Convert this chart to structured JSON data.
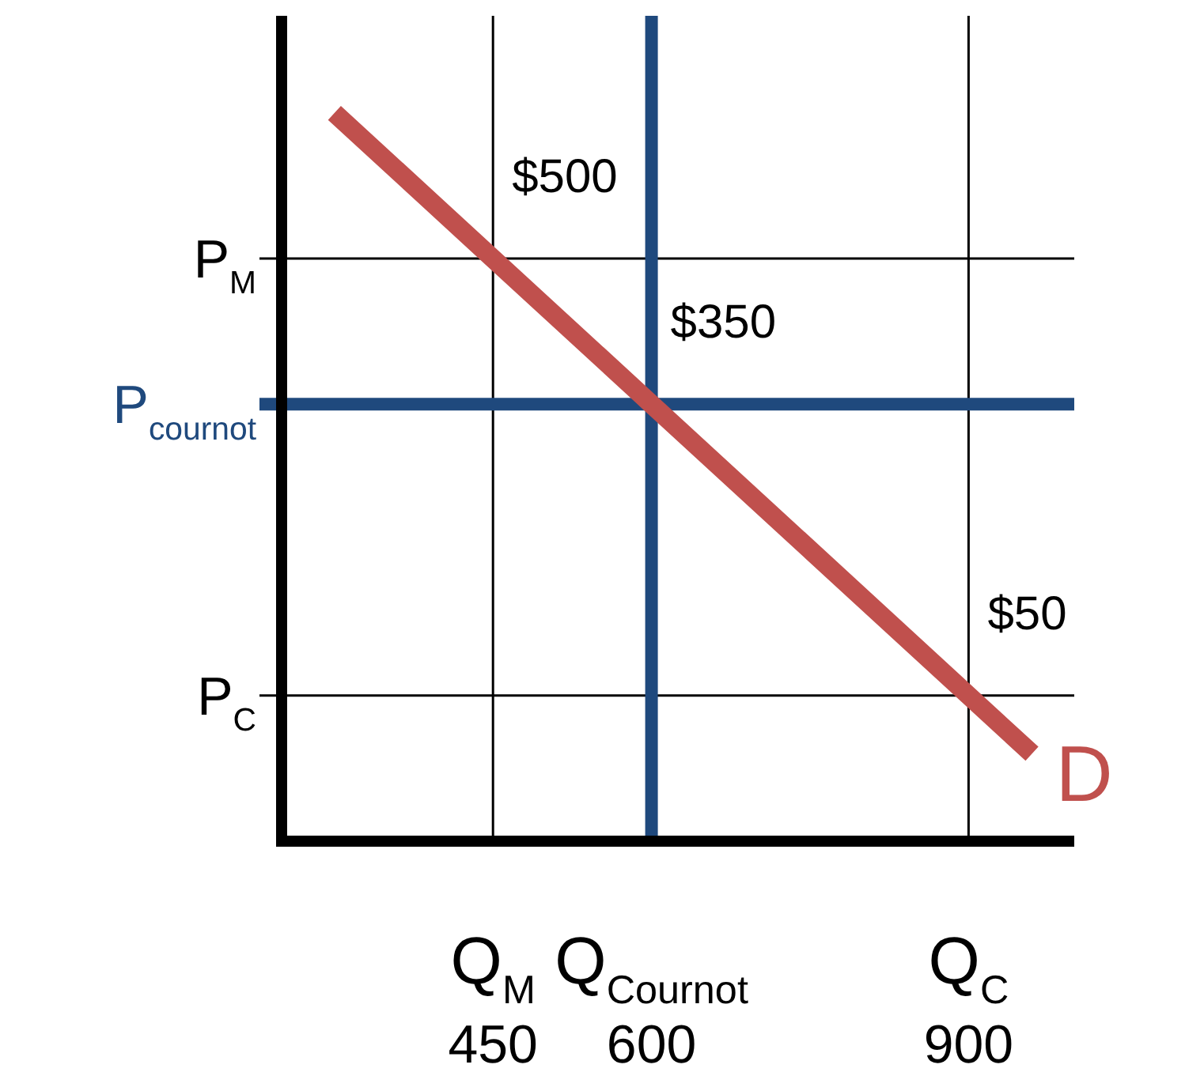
{
  "chart_data": {
    "type": "line",
    "x": [
      300,
      450,
      600,
      900,
      960
    ],
    "series": [
      {
        "name": "D",
        "color": "#c0504d",
        "values": [
          650,
          500,
          350,
          50,
          -10
        ],
        "value_labels": [
          null,
          "$500",
          "$350",
          "$50",
          null
        ]
      }
    ],
    "xlim": [
      250,
      1000
    ],
    "ylim": [
      -100,
      750
    ],
    "xticks": [
      {
        "value": 450,
        "label": "Q$_{M}$ 450"
      },
      {
        "value": 600,
        "label": "Q$_{Cournot}$ 600"
      },
      {
        "value": 900,
        "label": "Q$_{C}$ 900"
      }
    ],
    "ref_lines": [
      {
        "axis": "y",
        "value": 500,
        "color": "#000000",
        "label": "P$_{M}$"
      },
      {
        "axis": "x",
        "value": 450,
        "color": "#000000"
      },
      {
        "axis": "y",
        "value": 50,
        "color": "#000000",
        "label": "P$_{C}$"
      },
      {
        "axis": "x",
        "value": 900,
        "color": "#000000"
      },
      {
        "axis": "y",
        "value": 350,
        "color": "#1f497d",
        "label": "P$_{cournot}$"
      },
      {
        "axis": "x",
        "value": 600,
        "color": "#1f497d"
      }
    ],
    "grid": false,
    "legend": false,
    "marker": "none",
    "line_style": "solid"
  }
}
